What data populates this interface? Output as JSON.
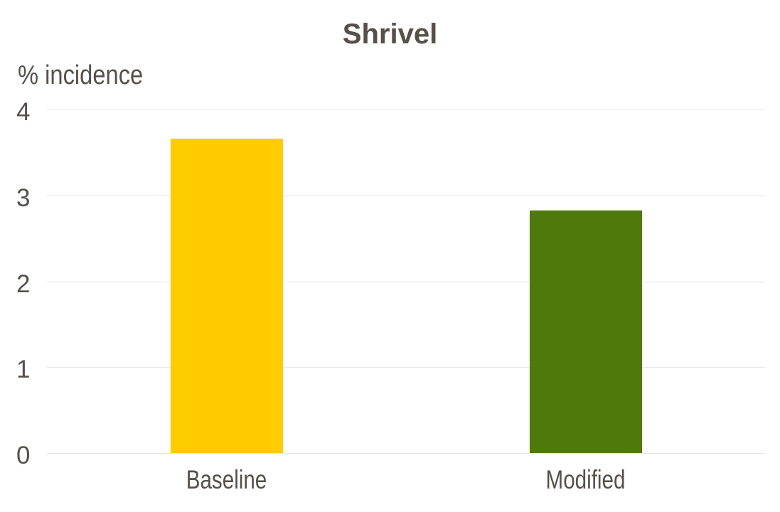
{
  "chart_data": {
    "type": "bar",
    "title": "Shrivel",
    "xlabel": "",
    "ylabel": "% incidence",
    "categories": [
      "Baseline",
      "Modified"
    ],
    "values": [
      3.66,
      2.82
    ],
    "ylim": [
      0,
      4
    ],
    "yticks": [
      0,
      1,
      2,
      3,
      4
    ],
    "grid": true,
    "legend": false,
    "bar_colors": [
      "#FFCC00",
      "#4E7A0B"
    ],
    "colors": {
      "title_text": "#57504A",
      "axis_text": "#57504A",
      "gridline": "#E3E3E3",
      "background": "#FFFFFF"
    }
  }
}
